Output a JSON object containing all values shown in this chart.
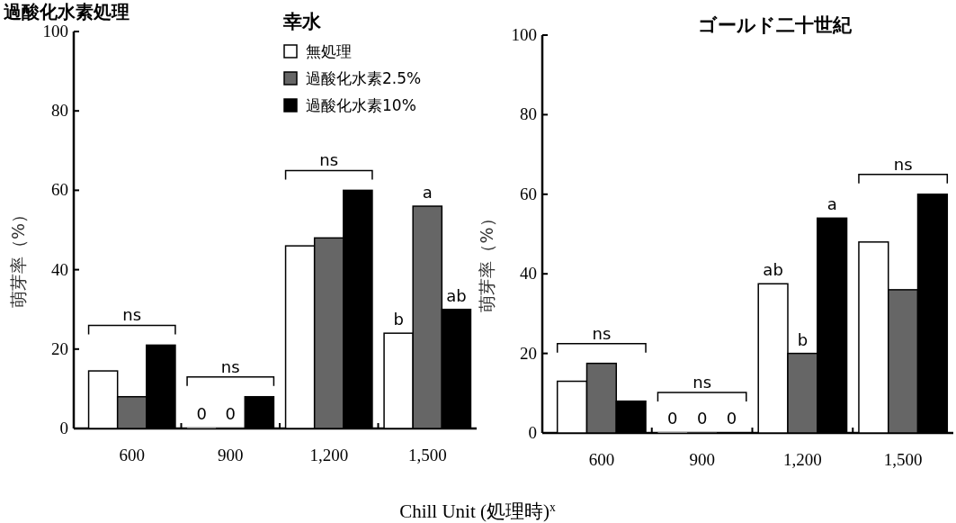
{
  "chart_data": [
    {
      "type": "bar",
      "title": "幸水",
      "ylabel": "萌芽率（%）",
      "xlabel": "Chill Unit (処理時)$^{x}$",
      "categories": [
        "600",
        "900",
        "1,200",
        "1,500"
      ],
      "series": [
        {
          "name": "無処理",
          "color": "#ffffff",
          "values": [
            14.5,
            0,
            46,
            24
          ],
          "value_labels": [
            null,
            "0",
            null,
            null
          ]
        },
        {
          "name": "過酸化水素2.5%",
          "color": "#666666",
          "values": [
            8,
            0,
            48,
            56
          ],
          "value_labels": [
            null,
            "0",
            null,
            null
          ]
        },
        {
          "name": "過酸化水素10%",
          "color": "#000000",
          "values": [
            21,
            8,
            60,
            30
          ]
        }
      ],
      "ylim": [
        0,
        100
      ],
      "yticks": [
        0,
        20,
        40,
        60,
        80,
        100
      ],
      "legend": "top",
      "annotations": [
        "過酸化水素処理",
        "ns",
        "ns",
        "ns",
        "b",
        "a",
        "ab"
      ]
    },
    {
      "type": "bar",
      "title": "ゴールド二十世紀",
      "ylabel": "萌芽率（%）",
      "categories": [
        "600",
        "900",
        "1,200",
        "1,500"
      ],
      "series": [
        {
          "color": "#ffffff",
          "values": [
            13,
            0,
            37.5,
            48
          ],
          "value_labels": [
            null,
            "0",
            null,
            null
          ]
        },
        {
          "color": "#666666",
          "values": [
            17.5,
            0,
            20,
            36
          ],
          "value_labels": [
            null,
            "0",
            null,
            null
          ]
        },
        {
          "color": "#000000",
          "values": [
            8,
            0,
            54,
            60
          ],
          "value_labels": [
            null,
            "0",
            null,
            null
          ]
        }
      ],
      "ylim": [
        0,
        100
      ],
      "yticks": [
        0,
        20,
        40,
        60,
        80,
        100
      ],
      "annotations": [
        "ns",
        "ns",
        "ns",
        "ab",
        "b",
        "a"
      ]
    }
  ]
}
